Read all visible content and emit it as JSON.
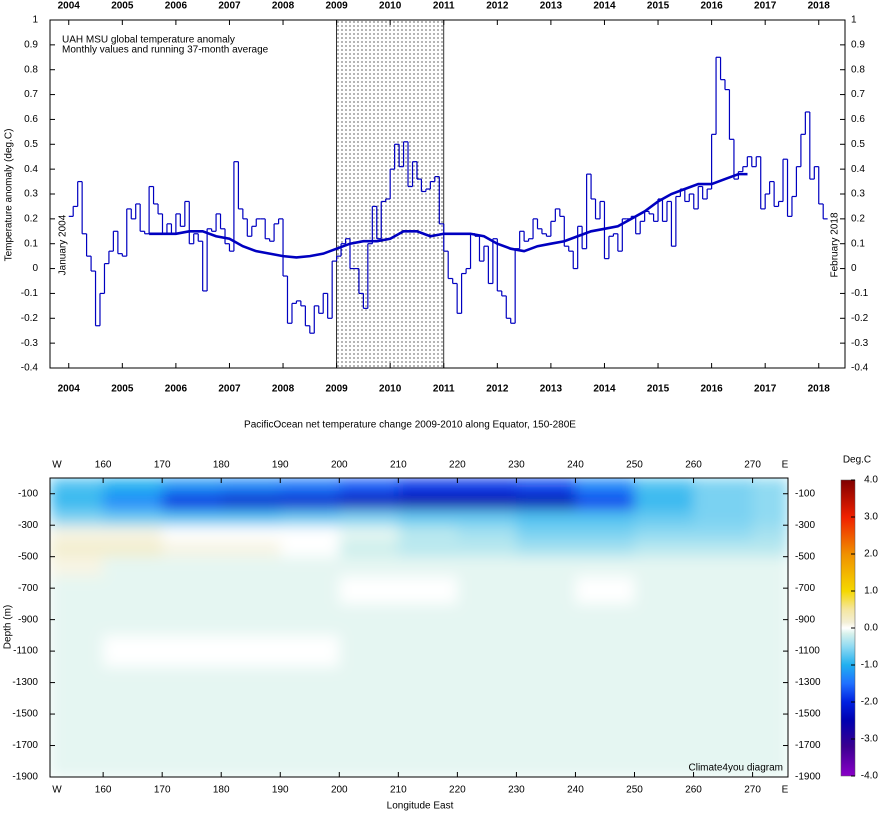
{
  "chart_data": [
    {
      "type": "step",
      "title": "UAH MSU global temperature anomaly",
      "subtitle": "Monthly values and running 37-month average",
      "y_label": "Temperature anomaly (deg.C)",
      "annotations": [
        "January 2004",
        "February 2018"
      ],
      "xlim": [
        2003.65,
        2018.49
      ],
      "xticks": [
        2004,
        2005,
        2006,
        2007,
        2008,
        2009,
        2010,
        2011,
        2012,
        2013,
        2014,
        2015,
        2016,
        2017,
        2018
      ],
      "ylim": [
        -0.4,
        1
      ],
      "yticks": [
        -0.4,
        -0.3,
        -0.2,
        -0.1,
        0,
        0.1,
        0.2,
        0.3,
        0.4,
        0.5,
        0.6,
        0.7,
        0.8,
        0.9,
        1
      ],
      "shaded": [
        2009,
        2011
      ],
      "series": [
        {
          "type": "step",
          "color": "#0000c0",
          "x": [
            2004,
            2004.083,
            2004.167,
            2004.25,
            2004.333,
            2004.417,
            2004.5,
            2004.583,
            2004.667,
            2004.75,
            2004.833,
            2004.917,
            2005,
            2005.083,
            2005.167,
            2005.25,
            2005.333,
            2005.417,
            2005.5,
            2005.583,
            2005.667,
            2005.75,
            2005.833,
            2005.917,
            2006,
            2006.083,
            2006.167,
            2006.25,
            2006.333,
            2006.417,
            2006.5,
            2006.583,
            2006.667,
            2006.75,
            2006.833,
            2006.917,
            2007,
            2007.083,
            2007.167,
            2007.25,
            2007.333,
            2007.417,
            2007.5,
            2007.583,
            2007.667,
            2007.75,
            2007.833,
            2007.917,
            2008,
            2008.083,
            2008.167,
            2008.25,
            2008.333,
            2008.417,
            2008.5,
            2008.583,
            2008.667,
            2008.75,
            2008.833,
            2008.917,
            2009,
            2009.083,
            2009.167,
            2009.25,
            2009.333,
            2009.417,
            2009.5,
            2009.583,
            2009.667,
            2009.75,
            2009.833,
            2009.917,
            2010,
            2010.083,
            2010.167,
            2010.25,
            2010.333,
            2010.417,
            2010.5,
            2010.583,
            2010.667,
            2010.75,
            2010.833,
            2010.917,
            2011,
            2011.083,
            2011.167,
            2011.25,
            2011.333,
            2011.417,
            2011.5,
            2011.583,
            2011.667,
            2011.75,
            2011.833,
            2011.917,
            2012,
            2012.083,
            2012.167,
            2012.25,
            2012.333,
            2012.417,
            2012.5,
            2012.583,
            2012.667,
            2012.75,
            2012.833,
            2012.917,
            2013,
            2013.083,
            2013.167,
            2013.25,
            2013.333,
            2013.417,
            2013.5,
            2013.583,
            2013.667,
            2013.75,
            2013.833,
            2013.917,
            2014,
            2014.083,
            2014.167,
            2014.25,
            2014.333,
            2014.417,
            2014.5,
            2014.583,
            2014.667,
            2014.75,
            2014.833,
            2014.917,
            2015,
            2015.083,
            2015.167,
            2015.25,
            2015.333,
            2015.417,
            2015.5,
            2015.583,
            2015.667,
            2015.75,
            2015.833,
            2015.917,
            2016,
            2016.083,
            2016.167,
            2016.25,
            2016.333,
            2016.417,
            2016.5,
            2016.583,
            2016.667,
            2016.75,
            2016.833,
            2016.917,
            2017,
            2017.083,
            2017.167,
            2017.25,
            2017.333,
            2017.417,
            2017.5,
            2017.583,
            2017.667,
            2017.75,
            2017.833,
            2017.917,
            2018,
            2018.083
          ],
          "values": [
            0.21,
            0.25,
            0.35,
            0.14,
            0.05,
            -0.01,
            -0.23,
            -0.1,
            0.02,
            0.07,
            0.15,
            0.06,
            0.05,
            0.24,
            0.2,
            0.26,
            0.15,
            0.14,
            0.33,
            0.26,
            0.22,
            0.14,
            0.18,
            0.14,
            0.22,
            0.17,
            0.27,
            0.1,
            0.14,
            0.11,
            -0.09,
            0.16,
            0.15,
            0.22,
            0.16,
            0.1,
            0.07,
            0.43,
            0.24,
            0.2,
            0.13,
            0.17,
            0.2,
            0.2,
            0.12,
            0.11,
            0.18,
            0.2,
            -0.03,
            -0.22,
            -0.14,
            -0.13,
            -0.15,
            -0.23,
            -0.26,
            -0.15,
            -0.18,
            -0.1,
            -0.2,
            0.03,
            0.05,
            0.1,
            0.12,
            0.0,
            0.0,
            -0.1,
            -0.16,
            0.1,
            0.25,
            0.12,
            0.27,
            0.28,
            0.4,
            0.5,
            0.41,
            0.51,
            0.33,
            0.43,
            0.36,
            0.31,
            0.32,
            0.35,
            0.37,
            0.18,
            0.07,
            -0.04,
            -0.06,
            -0.18,
            -0.02,
            0.0,
            0.14,
            0.13,
            0.03,
            0.09,
            -0.06,
            0.12,
            -0.09,
            -0.11,
            -0.2,
            -0.22,
            0.08,
            0.15,
            0.11,
            0.12,
            0.2,
            0.16,
            0.14,
            0.13,
            0.19,
            0.24,
            0.21,
            0.09,
            0.07,
            0.0,
            0.17,
            0.08,
            0.38,
            0.28,
            0.2,
            0.27,
            0.04,
            0.13,
            0.14,
            0.07,
            0.2,
            0.2,
            0.21,
            0.14,
            0.19,
            0.23,
            0.22,
            0.19,
            0.28,
            0.19,
            0.27,
            0.09,
            0.29,
            0.32,
            0.27,
            0.3,
            0.24,
            0.33,
            0.28,
            0.32,
            0.54,
            0.85,
            0.76,
            0.72,
            0.52,
            0.36,
            0.39,
            0.41,
            0.45,
            0.41,
            0.45,
            0.24,
            0.3,
            0.35,
            0.25,
            0.27,
            0.44,
            0.21,
            0.29,
            0.41,
            0.54,
            0.63,
            0.36,
            0.41,
            0.26,
            0.2
          ]
        },
        {
          "type": "line",
          "color": "#0000c0",
          "x": [
            2005.5,
            2005.75,
            2006,
            2006.25,
            2006.5,
            2006.75,
            2007,
            2007.25,
            2007.5,
            2007.75,
            2008,
            2008.25,
            2008.5,
            2008.75,
            2009,
            2009.25,
            2009.5,
            2009.75,
            2010,
            2010.25,
            2010.5,
            2010.75,
            2011,
            2011.25,
            2011.5,
            2011.75,
            2012,
            2012.25,
            2012.5,
            2012.75,
            2013,
            2013.25,
            2013.5,
            2013.75,
            2014,
            2014.25,
            2014.5,
            2014.75,
            2015,
            2015.25,
            2015.5,
            2015.75,
            2016,
            2016.25,
            2016.5,
            2016.67
          ],
          "values": [
            0.14,
            0.14,
            0.14,
            0.15,
            0.15,
            0.13,
            0.12,
            0.09,
            0.07,
            0.06,
            0.05,
            0.045,
            0.05,
            0.06,
            0.08,
            0.1,
            0.11,
            0.11,
            0.12,
            0.15,
            0.15,
            0.13,
            0.14,
            0.14,
            0.14,
            0.13,
            0.1,
            0.08,
            0.07,
            0.09,
            0.1,
            0.11,
            0.13,
            0.15,
            0.16,
            0.17,
            0.2,
            0.23,
            0.27,
            0.3,
            0.32,
            0.34,
            0.34,
            0.36,
            0.38,
            0.38
          ]
        }
      ]
    },
    {
      "type": "contour",
      "title": "PacificOcean net temperature change 2009-2010 along Equator, 150-280E",
      "x_label": "Longitude East",
      "y_label": "Depth (m)",
      "x_end_labels": [
        "W",
        "E"
      ],
      "credit": "Climate4you diagram",
      "xlim": [
        151,
        276
      ],
      "xticks": [
        160,
        170,
        180,
        190,
        200,
        210,
        220,
        230,
        240,
        250,
        260,
        270
      ],
      "ylim": [
        -1900,
        0
      ],
      "yticks": [
        -1900,
        -1700,
        -1500,
        -1300,
        -1100,
        -900,
        -700,
        -500,
        -300,
        -100
      ],
      "x": [
        155,
        165,
        175,
        185,
        195,
        205,
        215,
        225,
        235,
        245,
        255,
        265,
        275
      ],
      "y": [
        -50,
        -150,
        -250,
        -350,
        -450,
        -550,
        -700,
        -900,
        -1100,
        -1300,
        -1500,
        -1700,
        -1850
      ],
      "values": [
        [
          -0.8,
          -1.0,
          -1.2,
          -1.3,
          -1.4,
          -1.6,
          -1.8,
          -1.8,
          -1.7,
          -1.3,
          -0.8,
          -0.6,
          -0.5
        ],
        [
          -0.9,
          -1.3,
          -2.0,
          -2.2,
          -2.2,
          -2.4,
          -2.6,
          -2.6,
          -2.5,
          -1.8,
          -0.9,
          -0.6,
          -0.5
        ],
        [
          -0.6,
          -0.7,
          -0.8,
          -0.8,
          -0.7,
          -0.6,
          -0.7,
          -0.7,
          -0.8,
          -0.8,
          -0.7,
          -0.6,
          -0.5
        ],
        [
          0.1,
          0.1,
          0.0,
          0.0,
          0.0,
          -0.1,
          -0.3,
          -0.4,
          -0.6,
          -0.6,
          -0.5,
          -0.5,
          -0.4
        ],
        [
          0.2,
          0.2,
          0.1,
          0.1,
          0.0,
          -0.2,
          -0.3,
          -0.3,
          -0.4,
          -0.4,
          -0.3,
          -0.3,
          -0.3
        ],
        [
          0.1,
          -0.1,
          -0.1,
          -0.1,
          -0.1,
          -0.1,
          -0.1,
          -0.1,
          -0.1,
          -0.1,
          -0.1,
          -0.1,
          -0.1
        ],
        [
          -0.1,
          -0.1,
          -0.1,
          -0.1,
          -0.1,
          0.0,
          0.0,
          -0.1,
          -0.1,
          0.0,
          -0.1,
          -0.1,
          -0.1
        ],
        [
          -0.1,
          -0.1,
          -0.1,
          -0.1,
          -0.1,
          -0.1,
          -0.1,
          -0.1,
          -0.1,
          -0.1,
          -0.1,
          -0.1,
          -0.1
        ],
        [
          -0.1,
          0.0,
          0.0,
          0.0,
          0.0,
          -0.1,
          -0.1,
          -0.1,
          -0.1,
          -0.1,
          -0.1,
          -0.1,
          -0.1
        ],
        [
          -0.1,
          -0.1,
          -0.1,
          -0.1,
          -0.1,
          -0.1,
          -0.1,
          -0.1,
          -0.1,
          -0.1,
          -0.1,
          -0.1,
          -0.1
        ],
        [
          -0.1,
          -0.1,
          -0.1,
          -0.1,
          -0.1,
          -0.1,
          -0.1,
          -0.1,
          -0.1,
          -0.1,
          -0.1,
          -0.1,
          -0.1
        ],
        [
          -0.1,
          -0.1,
          -0.1,
          -0.1,
          -0.1,
          -0.1,
          -0.1,
          -0.1,
          -0.1,
          -0.1,
          -0.1,
          -0.1,
          -0.1
        ],
        [
          -0.1,
          -0.1,
          -0.1,
          -0.1,
          -0.1,
          -0.1,
          -0.1,
          -0.1,
          -0.1,
          -0.1,
          -0.1,
          -0.1,
          -0.1
        ]
      ],
      "colorbar": {
        "title": "Deg.C",
        "lim": [
          -4,
          4
        ],
        "ticks": [
          {
            "value": 4,
            "label": "4.0"
          },
          {
            "value": 3,
            "label": "3.0"
          },
          {
            "value": 2,
            "label": "2.0"
          },
          {
            "value": 1,
            "label": "1.0"
          },
          {
            "value": 0,
            "label": "0.0"
          },
          {
            "value": -1,
            "label": "-1.0"
          },
          {
            "value": -2,
            "label": "-2.0"
          },
          {
            "value": -3,
            "label": "-3.0"
          },
          {
            "value": -4,
            "label": "-4.0"
          }
        ],
        "colors": [
          [
            -4,
            "#8a00c8"
          ],
          [
            -3.2,
            "#3a0090"
          ],
          [
            -2.5,
            "#0000b0"
          ],
          [
            -2,
            "#0020e0"
          ],
          [
            -1.5,
            "#2070ff"
          ],
          [
            -1,
            "#20b0f0"
          ],
          [
            -0.5,
            "#90daf2"
          ],
          [
            -0.15,
            "#d8f2ec"
          ],
          [
            0,
            "#ffffff"
          ],
          [
            0.15,
            "#f3efd6"
          ],
          [
            0.5,
            "#f5e6a0"
          ],
          [
            1,
            "#f5d800"
          ],
          [
            2,
            "#f09000"
          ],
          [
            3,
            "#f02000"
          ],
          [
            4,
            "#800000"
          ]
        ]
      }
    }
  ]
}
